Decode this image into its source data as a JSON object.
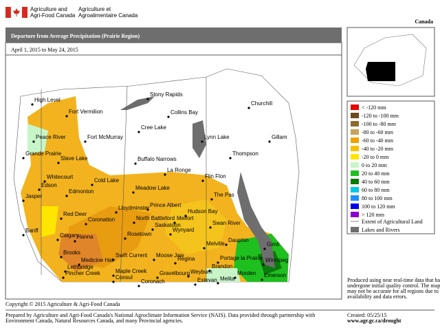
{
  "header": {
    "dept_en": [
      "Agriculture and",
      "Agri-Food Canada"
    ],
    "dept_fr": [
      "Agriculture et",
      "Agroalimentaire Canada"
    ],
    "wordmark": "Canada"
  },
  "title": "Departure from Average Precipitation (Prairie Region)",
  "subtitle": "April 1, 2015 to May 24, 2015",
  "legend": {
    "items": [
      {
        "label": "< -120 mm",
        "color": "#e60000"
      },
      {
        "label": "-120 to -100 mm",
        "color": "#6b4a1e"
      },
      {
        "label": "-100 to -80 mm",
        "color": "#8c6d2c"
      },
      {
        "label": "-80 to -60 mm",
        "color": "#c8a25a"
      },
      {
        "label": "-60 to -40 mm",
        "color": "#f0a000"
      },
      {
        "label": "-40 to -20 mm",
        "color": "#f5c000"
      },
      {
        "label": "-20 to 0 mm",
        "color": "#ffe600"
      },
      {
        "label": "0 to 20 mm",
        "color": "#c8f5c8"
      },
      {
        "label": "20 to 40 mm",
        "color": "#1fbf1f"
      },
      {
        "label": "40 to 60 mm",
        "color": "#0a7a0a"
      },
      {
        "label": "60 to 80 mm",
        "color": "#00c8e6"
      },
      {
        "label": "80 to 100 mm",
        "color": "#1e90ff"
      },
      {
        "label": "100 to 120 mm",
        "color": "#0000e6"
      },
      {
        "label": "> 120 mm",
        "color": "#8c00d2"
      }
    ],
    "extent_label": "Extent of Agricultural Land",
    "lakes_label": "Lakes and Rivers"
  },
  "places": [
    "High Level",
    "Fort Vermilion",
    "Stony Rapids",
    "Churchill",
    "Collins Bay",
    "Peace River",
    "Fort McMurray",
    "Cree Lake",
    "Lynn Lake",
    "Gillam",
    "Grande Prairie",
    "Slave Lake",
    "Buffalo Narrows",
    "Thompson",
    "Whitecourt",
    "Cold Lake",
    "La Ronge",
    "Flin Flon",
    "Edson",
    "Edmonton",
    "Meadow Lake",
    "The Pas",
    "Jasper",
    "Lloydminster",
    "Prince Albert",
    "Hudson Bay",
    "Red Deer",
    "North Battleford",
    "Melfort",
    "Swan River",
    "Coronation",
    "Saskatoon",
    "Banff",
    "Calgary",
    "Hanna",
    "Rosetown",
    "Wynyard",
    "Melville",
    "Dauphin",
    "Gimli",
    "Brooks",
    "Swift Current",
    "Moose Jaw",
    "Regina",
    "Portage la Prairie",
    "Winnipeg",
    "Medicine Hat",
    "Lethbridge",
    "Maple Creek",
    "Gravelbourg",
    "Weyburn",
    "Brandon",
    "Morden",
    "Emerson",
    "Pincher Creek",
    "Consul",
    "Coronach",
    "Estevan",
    "Melita"
  ],
  "note": [
    "Produced using near real-time data that has",
    "undergone initial quality control.  The map",
    "may not be accurate for all regions due to data",
    "availability and data errors."
  ],
  "copyright": "Copyright © 2015 Agriculture & Agri-Food Canada",
  "credit": [
    "Prepared by Agriculture and Agri-Food Canada's National Agroclimate Information Service (NAIS).  Data provided through partnership with",
    "Environment Canada, Natural Resources Canada, and many Provincial agencies."
  ],
  "created": "Created: 05/25/15",
  "url": "www.agr.gc.ca/drought"
}
